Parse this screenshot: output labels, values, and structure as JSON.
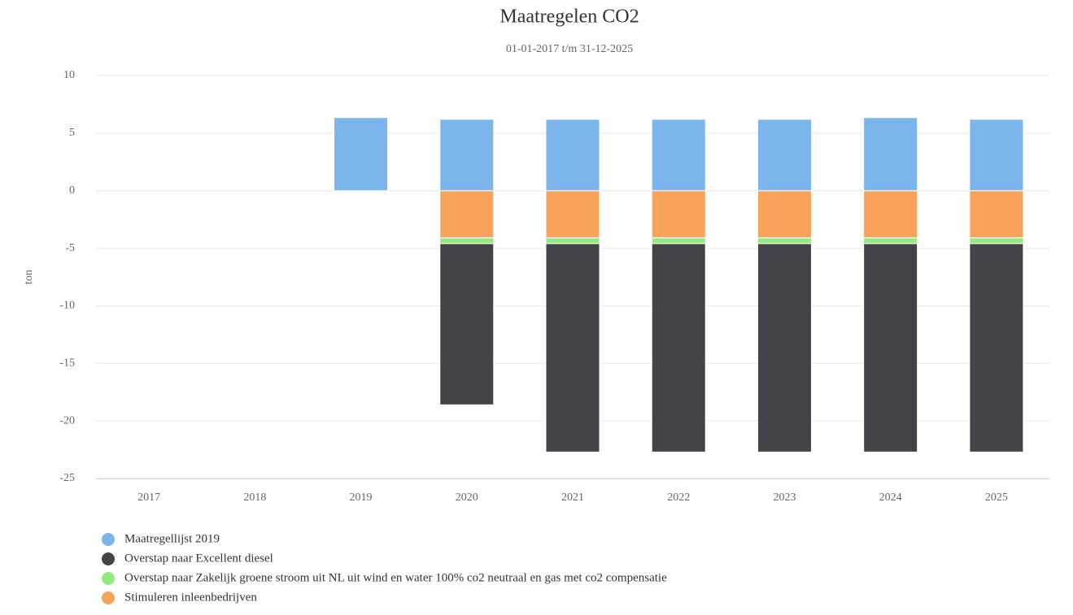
{
  "chart_data": {
    "type": "bar",
    "stacked": true,
    "title": "Maatregelen CO2",
    "subtitle": "01-01-2017 t/m 31-12-2025",
    "ylabel": "ton",
    "categories": [
      "2017",
      "2018",
      "2019",
      "2020",
      "2021",
      "2022",
      "2023",
      "2024",
      "2025"
    ],
    "series": [
      {
        "name": "Maatregellijst 2019",
        "color": "#7cb5ec",
        "values": [
          null,
          null,
          6.35,
          6.2,
          6.2,
          6.2,
          6.2,
          6.35,
          6.2
        ]
      },
      {
        "name": "Overstap naar Excellent diesel",
        "color": "#434348",
        "values": [
          null,
          null,
          null,
          -14.0,
          -18.1,
          -18.1,
          -18.1,
          -18.1,
          -18.1
        ]
      },
      {
        "name": "Overstap naar Zakelijk groene stroom uit NL uit wind en water 100% co2 neutraal en gas met co2 compensatie",
        "color": "#90ed7d",
        "values": [
          null,
          null,
          null,
          -0.5,
          -0.5,
          -0.5,
          -0.5,
          -0.5,
          -0.5
        ]
      },
      {
        "name": "Stimuleren inleenbedrijven",
        "color": "#f7a35c",
        "values": [
          null,
          null,
          null,
          -4.1,
          -4.1,
          -4.1,
          -4.1,
          -4.1,
          -4.1
        ]
      }
    ],
    "ylim": [
      -25,
      10
    ],
    "yticks": [
      10,
      5,
      0,
      -5,
      -10,
      -15,
      -20,
      -25
    ],
    "grid": true
  }
}
